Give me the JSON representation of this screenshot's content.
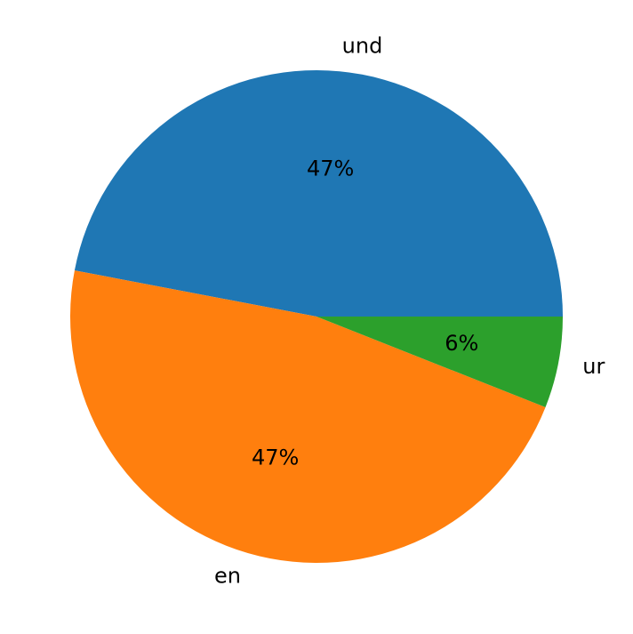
{
  "chart_data": {
    "type": "pie",
    "categories": [
      "und",
      "en",
      "ur"
    ],
    "values": [
      47,
      47,
      6
    ],
    "value_labels": [
      "47%",
      "47%",
      "6%"
    ],
    "colors": [
      "#1f77b4",
      "#ff7f0e",
      "#2ca02c"
    ]
  }
}
